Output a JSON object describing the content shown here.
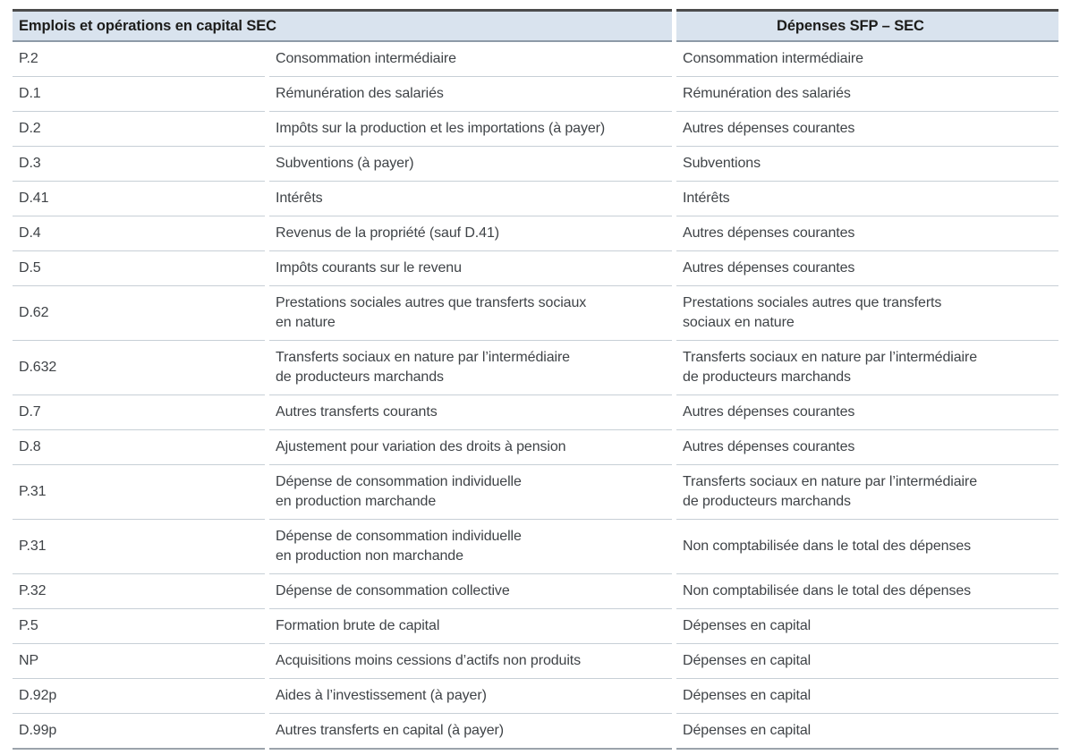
{
  "colors": {
    "header_bg": "#d9e3ee",
    "header_text": "#1c1c1a",
    "body_text": "#3f4347",
    "border_top_dark": "#4c4c4c",
    "header_underline": "#8d9aa7",
    "row_divider": "#c7cfd6",
    "table_bottom_border": "#9ba3ab"
  },
  "table": {
    "header": {
      "left": "Emplois et opérations en capital SEC",
      "right": "Dépenses SFP – SEC"
    },
    "rows": [
      {
        "code": "P.2",
        "sec": "Consommation intermédiaire",
        "sfp": "Consommation intermédiaire"
      },
      {
        "code": "D.1",
        "sec": "Rémunération des salariés",
        "sfp": "Rémunération des salariés"
      },
      {
        "code": "D.2",
        "sec": "Impôts sur la production et les importations (à payer)",
        "sfp": "Autres dépenses courantes"
      },
      {
        "code": "D.3",
        "sec": "Subventions (à payer)",
        "sfp": "Subventions"
      },
      {
        "code": "D.41",
        "sec": "Intérêts",
        "sfp": "Intérêts"
      },
      {
        "code": "D.4",
        "sec": "Revenus de la propriété (sauf D.41)",
        "sfp": "Autres dépenses courantes"
      },
      {
        "code": "D.5",
        "sec": "Impôts courants sur le revenu",
        "sfp": "Autres dépenses courantes"
      },
      {
        "code": "D.62",
        "sec": "Prestations sociales autres que transferts sociaux\nen nature",
        "sfp": "Prestations sociales autres que transferts\nsociaux en nature"
      },
      {
        "code": "D.632",
        "sec": "Transferts sociaux en nature par l’intermédiaire\nde producteurs marchands",
        "sfp": "Transferts sociaux en nature par l’intermédiaire\nde producteurs marchands"
      },
      {
        "code": "D.7",
        "sec": "Autres transferts courants",
        "sfp": "Autres dépenses courantes"
      },
      {
        "code": "D.8",
        "sec": "Ajustement pour variation des droits à pension",
        "sfp": "Autres dépenses courantes"
      },
      {
        "code": "P.31",
        "sec": "Dépense de consommation individuelle\nen production marchande",
        "sfp": "Transferts sociaux en nature par l’intermédiaire\nde producteurs marchands"
      },
      {
        "code": "P.31",
        "sec": "Dépense de consommation individuelle\nen production non marchande",
        "sfp": "Non comptabilisée dans le total des dépenses"
      },
      {
        "code": "P.32",
        "sec": "Dépense de consommation collective",
        "sfp": "Non comptabilisée dans le total des dépenses"
      },
      {
        "code": "P.5",
        "sec": "Formation brute de capital",
        "sfp": "Dépenses en capital"
      },
      {
        "code": "NP",
        "sec": "Acquisitions moins cessions d’actifs non produits",
        "sfp": "Dépenses en capital"
      },
      {
        "code": "D.92p",
        "sec": "Aides à l’investissement (à payer)",
        "sfp": "Dépenses en capital"
      },
      {
        "code": "D.99p",
        "sec": "Autres transferts en capital (à payer)",
        "sfp": "Dépenses en capital"
      }
    ]
  }
}
